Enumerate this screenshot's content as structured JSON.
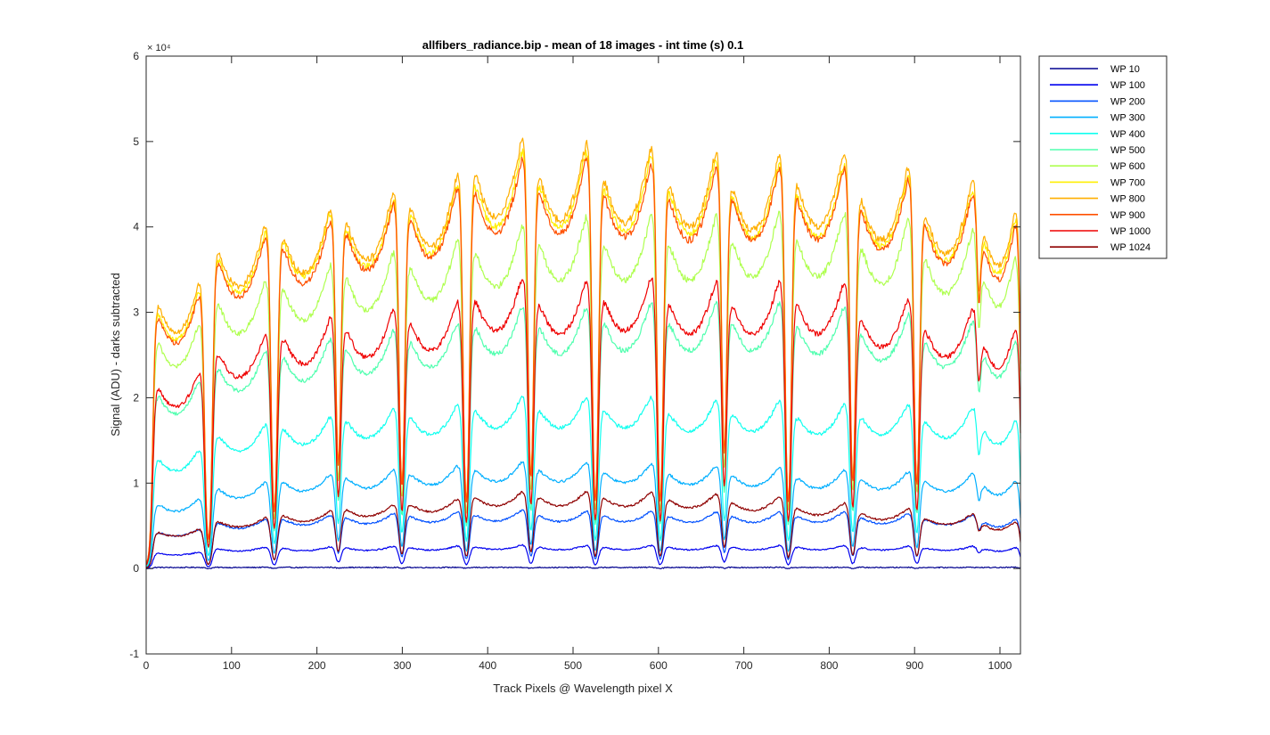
{
  "chart_data": {
    "type": "line",
    "title": "allfibers_radiance.bip - mean of 18 images - int time (s) 0.1",
    "xlabel": "Track Pixels @ Wavelength pixel X",
    "ylabel": "Signal (ADU) - darks subtracted",
    "y_exponent": "× 10⁴",
    "xlim": [
      0,
      1024
    ],
    "ylim": [
      -10000,
      60000
    ],
    "x_ticks": [
      0,
      100,
      200,
      300,
      400,
      500,
      600,
      700,
      800,
      900,
      1000
    ],
    "y_ticks": [
      -10000,
      0,
      10000,
      20000,
      30000,
      40000,
      50000,
      60000
    ],
    "y_tick_labels": [
      "-1",
      "0",
      "1",
      "2",
      "3",
      "4",
      "5",
      "6"
    ],
    "grid": false,
    "legend_position": "outside-right",
    "fiber_centers": [
      38,
      112,
      188,
      262,
      337,
      413,
      488,
      564,
      640,
      714,
      790,
      865,
      940,
      1000
    ],
    "fiber_halfwidths": [
      30,
      34,
      34,
      34,
      34,
      34,
      34,
      34,
      34,
      34,
      34,
      34,
      34,
      24
    ],
    "series": [
      {
        "name": "WP 10",
        "color": "#00008f",
        "peaks": [
          150,
          150,
          150,
          150,
          150,
          150,
          150,
          150,
          150,
          150,
          150,
          150,
          150,
          150
        ]
      },
      {
        "name": "WP 100",
        "color": "#0000ef",
        "peaks": [
          2000,
          2600,
          2650,
          2700,
          2750,
          2850,
          2800,
          2800,
          2800,
          2800,
          2800,
          2750,
          2700,
          2600
        ]
      },
      {
        "name": "WP 200",
        "color": "#0050ff",
        "peaks": [
          4800,
          6000,
          6500,
          6700,
          6900,
          7100,
          7000,
          7000,
          6900,
          6900,
          6900,
          6700,
          6500,
          6200
        ]
      },
      {
        "name": "WP 300",
        "color": "#00afff",
        "peaks": [
          8500,
          10500,
          11500,
          12000,
          12500,
          13000,
          13000,
          12800,
          12500,
          12300,
          12000,
          11800,
          11500,
          11000
        ]
      },
      {
        "name": "WP 400",
        "color": "#10ffef",
        "peaks": [
          14500,
          17500,
          18500,
          19500,
          20000,
          21000,
          21000,
          21000,
          20500,
          20500,
          20000,
          20000,
          19500,
          18500
        ]
      },
      {
        "name": "WP 500",
        "color": "#50ffaf",
        "peaks": [
          23000,
          26500,
          28000,
          29000,
          30000,
          32000,
          32000,
          32500,
          32500,
          32500,
          32000,
          31000,
          30000,
          28500
        ]
      },
      {
        "name": "WP 600",
        "color": "#afff50",
        "peaks": [
          30000,
          35000,
          37000,
          38500,
          40000,
          42000,
          43000,
          43000,
          43000,
          43500,
          43500,
          42500,
          41000,
          39000
        ]
      },
      {
        "name": "WP 700",
        "color": "#ffef00",
        "peaks": [
          34000,
          41000,
          43500,
          45000,
          47000,
          51000,
          51000,
          50500,
          50000,
          49500,
          49500,
          48000,
          46000,
          44000
        ]
      },
      {
        "name": "WP 800",
        "color": "#ffaf00",
        "peaks": [
          35000,
          42000,
          44000,
          46000,
          48000,
          52500,
          52000,
          51500,
          51000,
          50500,
          51000,
          49000,
          47000,
          45000
        ]
      },
      {
        "name": "WP 900",
        "color": "#ff5000",
        "peaks": [
          33500,
          40500,
          42500,
          44500,
          46500,
          50000,
          50000,
          49500,
          49000,
          49000,
          49000,
          47500,
          45500,
          43000
        ]
      },
      {
        "name": "WP 1000",
        "color": "#ef0000",
        "peaks": [
          24000,
          28500,
          30500,
          31500,
          32500,
          35500,
          35000,
          35500,
          35000,
          35000,
          35000,
          33000,
          31500,
          30000
        ]
      },
      {
        "name": "WP 1024",
        "color": "#8f0000",
        "peaks": [
          4800,
          6200,
          7000,
          7800,
          8500,
          9400,
          9400,
          9300,
          9100,
          8700,
          8000,
          7300,
          6600,
          5800
        ]
      }
    ]
  }
}
